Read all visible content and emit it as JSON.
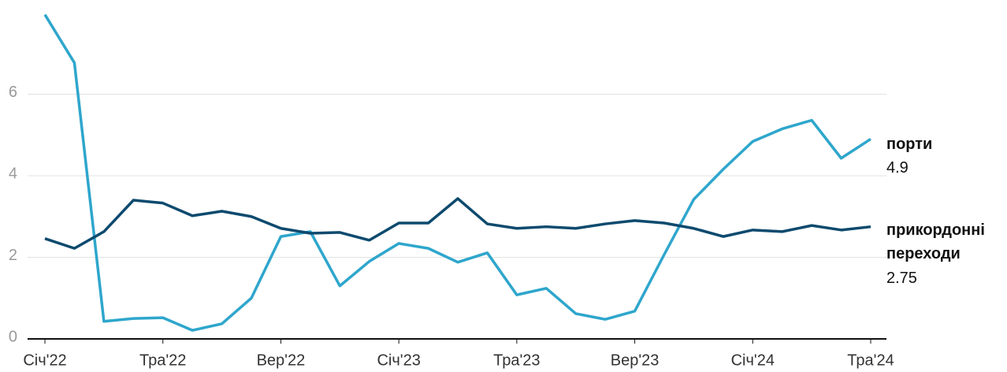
{
  "chart_data": {
    "type": "line",
    "categories": [
      "Січ'22",
      null,
      null,
      null,
      "Тра'22",
      null,
      null,
      null,
      "Вер'22",
      null,
      null,
      null,
      "Січ'23",
      null,
      null,
      null,
      "Тра'23",
      null,
      null,
      null,
      "Вер'23",
      null,
      null,
      null,
      "Січ'24",
      null,
      null,
      null,
      "Тра'24"
    ],
    "series": [
      {
        "name": "порти",
        "color": "#2ea6cc",
        "values": [
          7.95,
          6.77,
          0.43,
          0.5,
          0.52,
          0.21,
          0.37,
          1.0,
          2.51,
          2.63,
          1.3,
          1.9,
          2.34,
          2.22,
          1.88,
          2.11,
          1.08,
          1.24,
          0.62,
          0.48,
          0.68,
          2.07,
          3.42,
          4.16,
          4.84,
          5.15,
          5.36,
          4.43,
          4.9
        ]
      },
      {
        "name": "прикордонні переходи",
        "color": "#0d4a6e",
        "values": [
          2.46,
          2.22,
          2.63,
          3.4,
          3.33,
          3.02,
          3.13,
          3.0,
          2.71,
          2.59,
          2.61,
          2.42,
          2.84,
          2.84,
          3.44,
          2.82,
          2.71,
          2.75,
          2.71,
          2.82,
          2.9,
          2.84,
          2.71,
          2.51,
          2.67,
          2.63,
          2.78,
          2.67,
          2.75
        ]
      }
    ],
    "ylim": [
      0,
      8
    ],
    "yticks": [
      0,
      2,
      4,
      6
    ],
    "grid": true
  }
}
